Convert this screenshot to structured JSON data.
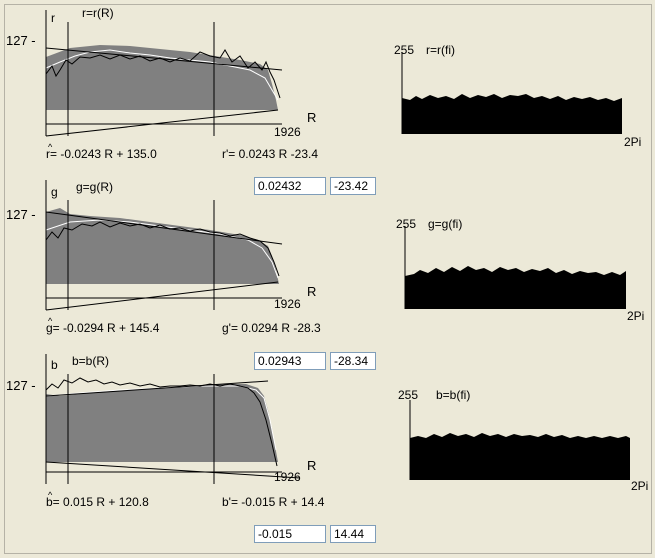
{
  "colors": {
    "background": "#ece9d8",
    "fill": "#808080",
    "hist": "#000000"
  },
  "panels": [
    {
      "id": "r",
      "axis_letter": "r",
      "curve_title": "r=r(R)",
      "y_tick": "127 -",
      "x_max_label": "1926",
      "x_axis_label": "R",
      "fit_hat": "r= -0.0243 R + 135.0",
      "fit_prime": "r'= 0.0243 R -23.4",
      "slope_value": "0.02432",
      "intercept_value": "-23.42",
      "hist_max": "255",
      "hist_title": "r=r(fi)",
      "hist_x_label": "2Pi"
    },
    {
      "id": "g",
      "axis_letter": "g",
      "curve_title": "g=g(R)",
      "y_tick": "127 -",
      "x_max_label": "1926",
      "x_axis_label": "R",
      "fit_hat": "g= -0.0294 R + 145.4",
      "fit_prime": "g'= 0.0294 R -28.3",
      "slope_value": "0.02943",
      "intercept_value": "-28.34",
      "hist_max": "255",
      "hist_title": "g=g(fi)",
      "hist_x_label": "2Pi"
    },
    {
      "id": "b",
      "axis_letter": "b",
      "curve_title": "b=b(R)",
      "y_tick": "127 -",
      "x_max_label": "1926",
      "x_axis_label": "R",
      "fit_hat": "b= 0.015 R + 120.8",
      "fit_prime": "b'= -0.015 R + 14.4",
      "slope_value": "-0.015",
      "intercept_value": "14.44",
      "hist_max": "255",
      "hist_title": "b=b(fi)",
      "hist_x_label": "2Pi"
    }
  ]
}
